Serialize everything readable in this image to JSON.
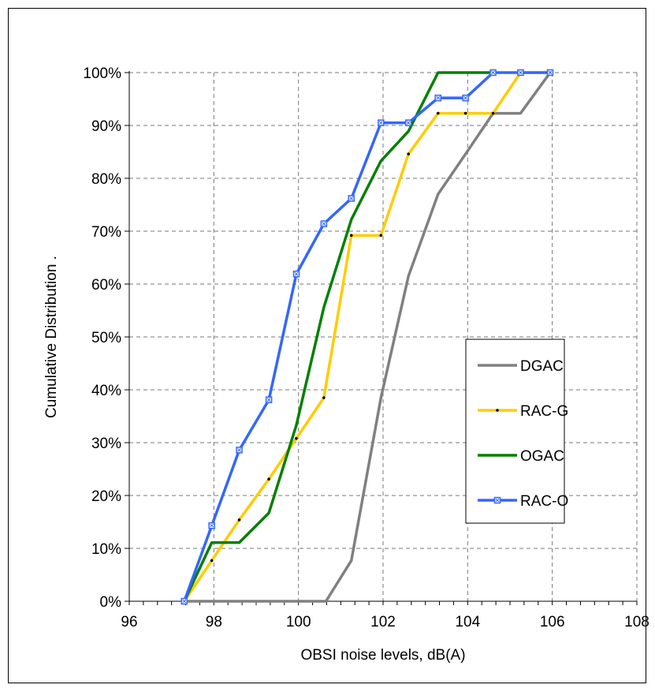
{
  "chart_data": {
    "type": "line",
    "xlabel": "OBSI noise levels, dB(A)",
    "ylabel": "Cumulative Distribution .",
    "xlim": [
      96,
      108
    ],
    "ylim": [
      0,
      1
    ],
    "x_ticks": [
      "96",
      "98",
      "100",
      "102",
      "104",
      "106",
      "108"
    ],
    "y_ticks": [
      "0%",
      "10%",
      "20%",
      "30%",
      "40%",
      "50%",
      "60%",
      "70%",
      "80%",
      "90%",
      "100%"
    ],
    "grid": true,
    "legend_position": "right",
    "series": [
      {
        "name": "DGAC",
        "color": "#808080",
        "marker": "none",
        "points": [
          [
            97.3,
            0
          ],
          [
            100.65,
            0
          ],
          [
            101.25,
            0.077
          ],
          [
            101.95,
            0.385
          ],
          [
            102.6,
            0.615
          ],
          [
            103.3,
            0.77
          ],
          [
            103.95,
            0.846
          ],
          [
            104.6,
            0.923
          ],
          [
            105.25,
            0.923
          ],
          [
            105.95,
            1.0
          ]
        ]
      },
      {
        "name": "RAC-G",
        "color": "#ffcc00",
        "marker": "dot",
        "points": [
          [
            97.3,
            0
          ],
          [
            97.95,
            0.077
          ],
          [
            98.6,
            0.154
          ],
          [
            99.3,
            0.231
          ],
          [
            99.95,
            0.308
          ],
          [
            100.6,
            0.385
          ],
          [
            101.25,
            0.692
          ],
          [
            101.95,
            0.692
          ],
          [
            102.6,
            0.846
          ],
          [
            103.3,
            0.923
          ],
          [
            103.95,
            0.923
          ],
          [
            104.6,
            0.923
          ],
          [
            105.25,
            1.0
          ],
          [
            105.95,
            1.0
          ]
        ]
      },
      {
        "name": "OGAC",
        "color": "#008000",
        "marker": "none",
        "points": [
          [
            97.3,
            0
          ],
          [
            97.95,
            0.111
          ],
          [
            98.6,
            0.111
          ],
          [
            99.3,
            0.167
          ],
          [
            99.95,
            0.333
          ],
          [
            100.6,
            0.556
          ],
          [
            101.25,
            0.722
          ],
          [
            101.95,
            0.833
          ],
          [
            102.6,
            0.889
          ],
          [
            103.3,
            1.0
          ],
          [
            103.95,
            1.0
          ],
          [
            104.6,
            1.0
          ]
        ]
      },
      {
        "name": "RAC-O",
        "color": "#3366ff",
        "marker": "square",
        "points": [
          [
            97.3,
            0
          ],
          [
            97.95,
            0.143
          ],
          [
            98.6,
            0.286
          ],
          [
            99.3,
            0.381
          ],
          [
            99.95,
            0.619
          ],
          [
            100.6,
            0.714
          ],
          [
            101.25,
            0.762
          ],
          [
            101.95,
            0.905
          ],
          [
            102.6,
            0.905
          ],
          [
            103.3,
            0.952
          ],
          [
            103.95,
            0.952
          ],
          [
            104.6,
            1.0
          ],
          [
            105.25,
            1.0
          ],
          [
            105.95,
            1.0
          ]
        ]
      }
    ]
  }
}
